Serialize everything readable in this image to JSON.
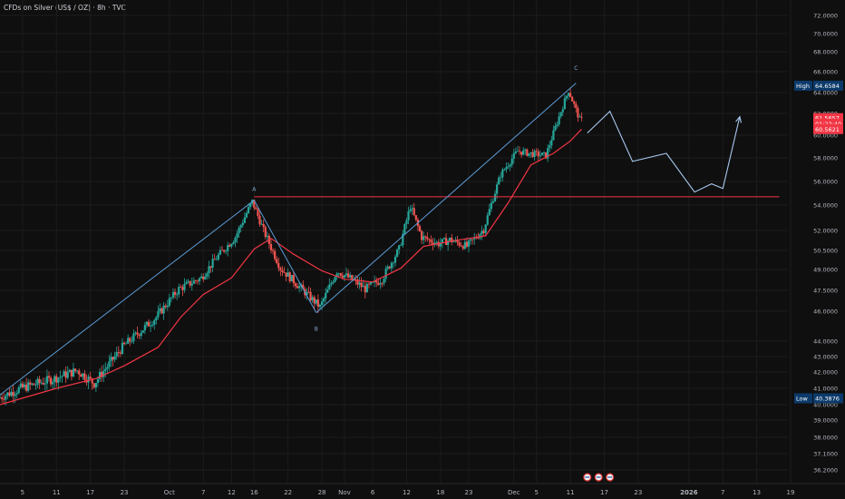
{
  "title": "CFDs on Silver (US$ / OZ) · 8h · TVC",
  "chart_data": {
    "type": "candlestick",
    "title": "CFDs on Silver (US$ / OZ) · 8h · TVC",
    "ylim": [
      35.5,
      72.8
    ],
    "y_ticks": [
      72,
      70,
      68,
      66,
      64,
      62,
      60,
      58,
      56,
      54,
      52,
      50.5,
      49,
      47.5,
      46,
      44,
      43,
      42,
      41,
      40,
      39,
      38,
      37.1,
      36.2
    ],
    "y_tick_labels": [
      "72.0000",
      "70.0000",
      "68.0000",
      "66.0000",
      "64.0000",
      "62.0000",
      "60.0000",
      "58.0000",
      "56.0000",
      "54.0000",
      "52.0000",
      "50.5000",
      "49.0000",
      "47.5000",
      "46.0000",
      "44.0000",
      "43.0000",
      "42.0000",
      "41.0000",
      "40.0000",
      "39.0000",
      "38.0000",
      "37.1000",
      "36.2000"
    ],
    "x_ticks": [
      {
        "label": "5",
        "date": "2025-09-05",
        "bold": false
      },
      {
        "label": "11",
        "date": "2025-09-11",
        "bold": false
      },
      {
        "label": "17",
        "date": "2025-09-17",
        "bold": false
      },
      {
        "label": "23",
        "date": "2025-09-23",
        "bold": false
      },
      {
        "label": "Oct",
        "date": "2025-10-01",
        "bold": false
      },
      {
        "label": "7",
        "date": "2025-10-07",
        "bold": false
      },
      {
        "label": "12",
        "date": "2025-10-12",
        "bold": false
      },
      {
        "label": "16",
        "date": "2025-10-16",
        "bold": false
      },
      {
        "label": "22",
        "date": "2025-10-22",
        "bold": false
      },
      {
        "label": "28",
        "date": "2025-10-28",
        "bold": false
      },
      {
        "label": "Nov",
        "date": "2025-11-01",
        "bold": false
      },
      {
        "label": "6",
        "date": "2025-11-06",
        "bold": false
      },
      {
        "label": "12",
        "date": "2025-11-12",
        "bold": false
      },
      {
        "label": "18",
        "date": "2025-11-18",
        "bold": false
      },
      {
        "label": "23",
        "date": "2025-11-23",
        "bold": false
      },
      {
        "label": "Dec",
        "date": "2025-12-01",
        "bold": false
      },
      {
        "label": "5",
        "date": "2025-12-05",
        "bold": false
      },
      {
        "label": "11",
        "date": "2025-12-11",
        "bold": false
      },
      {
        "label": "17",
        "date": "2025-12-17",
        "bold": false
      },
      {
        "label": "23",
        "date": "2025-12-23",
        "bold": false
      },
      {
        "label": "2026",
        "date": "2026-01-01",
        "bold": true
      },
      {
        "label": "7",
        "date": "2026-01-07",
        "bold": false
      },
      {
        "label": "13",
        "date": "2026-01-13",
        "bold": false
      },
      {
        "label": "19",
        "date": "2026-01-19",
        "bold": false
      }
    ],
    "price_anchors": [
      [
        "2025-09-01",
        40.4
      ],
      [
        "2025-09-05",
        41.0
      ],
      [
        "2025-09-11",
        41.6
      ],
      [
        "2025-09-15",
        42.1
      ],
      [
        "2025-09-18",
        41.3
      ],
      [
        "2025-09-23",
        43.6
      ],
      [
        "2025-09-29",
        45.6
      ],
      [
        "2025-10-03",
        47.6
      ],
      [
        "2025-10-07",
        48.4
      ],
      [
        "2025-10-10",
        50.1
      ],
      [
        "2025-10-13",
        51.5
      ],
      [
        "2025-10-16",
        54.3
      ],
      [
        "2025-10-18",
        52.0
      ],
      [
        "2025-10-21",
        49.1
      ],
      [
        "2025-10-23",
        48.3
      ],
      [
        "2025-10-26",
        47.1
      ],
      [
        "2025-10-28",
        46.3
      ],
      [
        "2025-10-31",
        48.9
      ],
      [
        "2025-11-03",
        48.2
      ],
      [
        "2025-11-05",
        47.6
      ],
      [
        "2025-11-08",
        48.3
      ],
      [
        "2025-11-11",
        50.6
      ],
      [
        "2025-11-13",
        53.9
      ],
      [
        "2025-11-15",
        51.5
      ],
      [
        "2025-11-18",
        51.0
      ],
      [
        "2025-11-20",
        51.3
      ],
      [
        "2025-11-23",
        50.8
      ],
      [
        "2025-11-26",
        52.1
      ],
      [
        "2025-11-29",
        56.6
      ],
      [
        "2025-12-02",
        58.6
      ],
      [
        "2025-12-04",
        58.4
      ],
      [
        "2025-12-07",
        58.2
      ],
      [
        "2025-12-09",
        61.2
      ],
      [
        "2025-12-11",
        64.2
      ],
      [
        "2025-12-13",
        61.4
      ]
    ],
    "moving_average": [
      [
        "2025-09-01",
        40.0
      ],
      [
        "2025-09-11",
        41.0
      ],
      [
        "2025-09-18",
        41.6
      ],
      [
        "2025-09-23",
        42.4
      ],
      [
        "2025-09-29",
        43.6
      ],
      [
        "2025-10-03",
        45.6
      ],
      [
        "2025-10-07",
        47.2
      ],
      [
        "2025-10-12",
        48.4
      ],
      [
        "2025-10-16",
        50.6
      ],
      [
        "2025-10-19",
        51.4
      ],
      [
        "2025-10-23",
        50.2
      ],
      [
        "2025-10-28",
        48.9
      ],
      [
        "2025-11-01",
        48.3
      ],
      [
        "2025-11-06",
        48.1
      ],
      [
        "2025-11-11",
        49.1
      ],
      [
        "2025-11-15",
        50.8
      ],
      [
        "2025-11-20",
        51.2
      ],
      [
        "2025-11-26",
        51.6
      ],
      [
        "2025-11-30",
        54.2
      ],
      [
        "2025-12-04",
        57.4
      ],
      [
        "2025-12-08",
        58.4
      ],
      [
        "2025-12-11",
        59.5
      ],
      [
        "2025-12-13",
        60.56
      ]
    ],
    "trendlines": [
      {
        "name": "A-upper",
        "points": [
          [
            "2025-09-01",
            40.6
          ],
          [
            "2025-10-16",
            54.4
          ]
        ]
      },
      {
        "name": "A-B",
        "points": [
          [
            "2025-10-16",
            54.4
          ],
          [
            "2025-10-27",
            45.9
          ]
        ]
      },
      {
        "name": "B-C",
        "points": [
          [
            "2025-10-27",
            45.9
          ],
          [
            "2025-12-12",
            64.9
          ]
        ]
      }
    ],
    "horizontal_levels": [
      {
        "value": 54.7,
        "from": "2025-10-16",
        "to": "2026-01-17"
      }
    ],
    "projection": [
      [
        "2025-12-14",
        60.2
      ],
      [
        "2025-12-18",
        62.2
      ],
      [
        "2025-12-22",
        57.7
      ],
      [
        "2025-12-28",
        58.4
      ],
      [
        "2026-01-02",
        55.1
      ],
      [
        "2026-01-05",
        55.8
      ],
      [
        "2026-01-07",
        55.4
      ],
      [
        "2026-01-10",
        61.7
      ]
    ],
    "wave_labels": [
      {
        "text": "A",
        "date": "2025-10-16",
        "value": 55.2
      },
      {
        "text": "B",
        "date": "2025-10-27",
        "value": 44.7
      },
      {
        "text": "C",
        "date": "2025-12-12",
        "value": 66.2
      }
    ],
    "price_tags": [
      {
        "label": "High",
        "value_text": "64.6584",
        "value": 64.6584,
        "bg": "#0c3a6b",
        "fg": "#ffffff"
      },
      {
        "label": "",
        "value_text": "61.5657",
        "value": 61.5657,
        "bg": "#f23645",
        "fg": "#ffffff"
      },
      {
        "label": "",
        "value_text": "01:22:40",
        "value": 61.05,
        "bg": "#f23645",
        "fg": "#ffffff"
      },
      {
        "label": "",
        "value_text": "60.5621",
        "value": 60.5621,
        "bg": "#f23645",
        "fg": "#ffffff"
      },
      {
        "label": "Low",
        "value_text": "40.3876",
        "value": 40.3876,
        "bg": "#0c3a6b",
        "fg": "#ffffff"
      }
    ],
    "colors": {
      "background": "#0f0f0f",
      "grid": "#1c1c1c",
      "up_candle": "#26a69a",
      "down_candle": "#ef5350",
      "moving_average": "#f23645",
      "trendline": "#5b9bd5",
      "level": "#f23645",
      "projection": "#a9c8f0"
    }
  }
}
